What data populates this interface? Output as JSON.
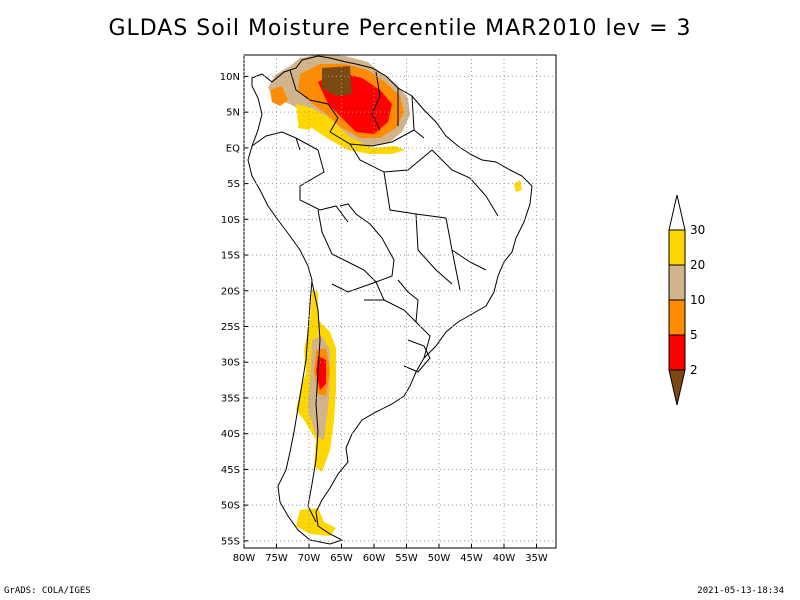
{
  "title": "GLDAS Soil Moisture Percentile MAR2010 lev = 3",
  "map": {
    "lon_range": [
      -80,
      -32
    ],
    "lat_range": [
      -56,
      13
    ],
    "lon_ticks": [
      {
        "value": -80,
        "label": "80W"
      },
      {
        "value": -75,
        "label": "75W"
      },
      {
        "value": -70,
        "label": "70W"
      },
      {
        "value": -65,
        "label": "65W"
      },
      {
        "value": -60,
        "label": "60W"
      },
      {
        "value": -55,
        "label": "55W"
      },
      {
        "value": -50,
        "label": "50W"
      },
      {
        "value": -45,
        "label": "45W"
      },
      {
        "value": -40,
        "label": "40W"
      },
      {
        "value": -35,
        "label": "35W"
      }
    ],
    "lat_ticks": [
      {
        "value": 10,
        "label": "10N"
      },
      {
        "value": 5,
        "label": "5N"
      },
      {
        "value": 0,
        "label": "EQ"
      },
      {
        "value": -5,
        "label": "5S"
      },
      {
        "value": -10,
        "label": "10S"
      },
      {
        "value": -15,
        "label": "15S"
      },
      {
        "value": -20,
        "label": "20S"
      },
      {
        "value": -25,
        "label": "25S"
      },
      {
        "value": -30,
        "label": "30S"
      },
      {
        "value": -35,
        "label": "35S"
      },
      {
        "value": -40,
        "label": "40S"
      },
      {
        "value": -45,
        "label": "45S"
      },
      {
        "value": -50,
        "label": "50S"
      },
      {
        "value": -55,
        "label": "55S"
      }
    ],
    "grid": true
  },
  "legend": {
    "bins": [
      {
        "color": "#7b4a12"
      },
      {
        "color": "#ff0000"
      },
      {
        "color": "#ff8c00"
      },
      {
        "color": "#d2b48c"
      },
      {
        "color": "#ffd700"
      },
      {
        "color": "#ffffff"
      }
    ],
    "labels": [
      "2",
      "5",
      "10",
      "20",
      "30"
    ]
  },
  "footer": {
    "left": "GrADS: COLA/IGES",
    "right": "2021-05-13-18:34"
  }
}
